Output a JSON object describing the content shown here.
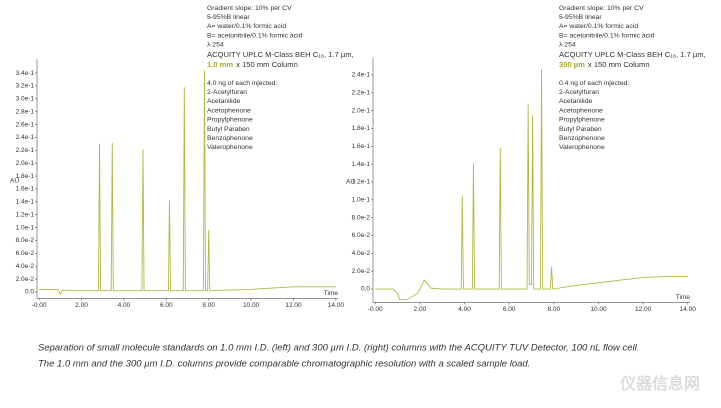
{
  "chart_data": [
    {
      "type": "line",
      "y_label": "AU",
      "x_label": "Time",
      "notes": [
        "Gradient slope: 10% per CV",
        "5-95%B linear",
        "A= water/0.1% formic acid",
        "B= acetonitrile/0.1% formic acid",
        "λ 254"
      ],
      "column": "ACQUITY UPLC M-Class BEH C₁₈, 1.7 µm,",
      "column_id": "1.0 mm",
      "column_length": "x 150 mm Column",
      "sample_note": "4.0 ng of each injected:",
      "compounds": [
        "2-Acetylfuran",
        "Acetanilide",
        "Acetophenone",
        "Propylphenone",
        "Butyl Paraben",
        "Benzophenone",
        "Valerophenone"
      ],
      "x": [
        0,
        0.5,
        0.9,
        1.0,
        1.1,
        1.5,
        2.8,
        2.85,
        2.9,
        3.4,
        3.45,
        3.5,
        4.85,
        4.9,
        4.95,
        6.1,
        6.15,
        6.2,
        6.8,
        6.85,
        6.9,
        7.75,
        7.8,
        7.85,
        7.95,
        8.0,
        8.05,
        9,
        10,
        11,
        12,
        13,
        14
      ],
      "series": [
        {
          "color": "#b5b842",
          "values": [
            0.004,
            0.004,
            0.004,
            -0.004,
            0.003,
            0.002,
            0.002,
            0.23,
            0.002,
            0.002,
            0.232,
            0.002,
            0.002,
            0.222,
            0.002,
            0.002,
            0.142,
            0.002,
            0.002,
            0.318,
            0.002,
            0.002,
            0.344,
            0.002,
            0.002,
            0.096,
            0.002,
            0.003,
            0.004,
            0.006,
            0.008,
            0.008,
            0.008
          ]
        }
      ],
      "xlim": [
        -0.1,
        14.1
      ],
      "xticks": [
        {
          "value": 0,
          "label": "-0.00"
        },
        {
          "value": 2,
          "label": "2.00"
        },
        {
          "value": 4,
          "label": "4.00"
        },
        {
          "value": 6,
          "label": "6.00"
        },
        {
          "value": 8,
          "label": "8.00"
        },
        {
          "value": 10,
          "label": "10.00"
        },
        {
          "value": 12,
          "label": "12.00"
        },
        {
          "value": 14,
          "label": "14.00"
        }
      ],
      "ylim": [
        -0.01,
        0.355
      ],
      "yticks": [
        {
          "value": 0,
          "label": "0.0"
        },
        {
          "value": 0.02,
          "label": "2.0e-2"
        },
        {
          "value": 0.04,
          "label": "4.0e-2"
        },
        {
          "value": 0.06,
          "label": "6.0e-2"
        },
        {
          "value": 0.08,
          "label": "8.0e-2"
        },
        {
          "value": 0.1,
          "label": "1.0e-1"
        },
        {
          "value": 0.12,
          "label": "1.2e-1"
        },
        {
          "value": 0.14,
          "label": "1.4e-1"
        },
        {
          "value": 0.16,
          "label": "1.6e-1"
        },
        {
          "value": 0.18,
          "label": "1.8e-1"
        },
        {
          "value": 0.2,
          "label": "2.0e-1"
        },
        {
          "value": 0.22,
          "label": "2.2e-1"
        },
        {
          "value": 0.24,
          "label": "2.4e-1"
        },
        {
          "value": 0.26,
          "label": "2.6e-1"
        },
        {
          "value": 0.28,
          "label": "2.8e-1"
        },
        {
          "value": 0.3,
          "label": "3.0e-1"
        },
        {
          "value": 0.32,
          "label": "3.2e-1"
        },
        {
          "value": 0.34,
          "label": "3.4e-1"
        }
      ]
    },
    {
      "type": "line",
      "y_label": "AU",
      "x_label": "Time",
      "notes": [
        "Gradient slope: 10% per CV",
        "5-95%B linear",
        "A= water/0.1% formic acid",
        "B= acetonitrile/0.1% formic acid",
        "λ 254"
      ],
      "column": "ACQUITY UPLC M-Class BEH C₁₈, 1.7 µm,",
      "column_id": "300 µm",
      "column_length": "x 150 mm Column",
      "sample_note": "0.4 ng of each injected:",
      "compounds": [
        "2-Acetylfuran",
        "Acetanilide",
        "Acetophenone",
        "Propylphenone",
        "Butyl Paraben",
        "Benzophenone",
        "Valerophenone"
      ],
      "x": [
        0,
        0.8,
        1.0,
        1.1,
        1.4,
        1.9,
        2.2,
        2.5,
        3.0,
        3.85,
        3.9,
        3.95,
        4.35,
        4.4,
        4.45,
        5.55,
        5.6,
        5.65,
        6.8,
        6.85,
        6.9,
        7.0,
        7.05,
        7.1,
        7.4,
        7.45,
        7.5,
        7.85,
        7.9,
        7.95,
        9,
        10,
        11,
        12,
        13,
        14
      ],
      "series": [
        {
          "color": "#b5b842",
          "values": [
            0,
            0,
            -0.005,
            -0.012,
            -0.012,
            -0.005,
            0.01,
            0.001,
            0,
            0,
            0.105,
            0,
            0,
            0.141,
            0,
            0,
            0.158,
            0,
            0,
            0.208,
            0.005,
            0.005,
            0.195,
            0,
            0,
            0.246,
            0,
            0,
            0.025,
            0,
            0.004,
            0.007,
            0.01,
            0.013,
            0.014,
            0.014
          ]
        }
      ],
      "xlim": [
        -0.1,
        14.1
      ],
      "xticks": [
        {
          "value": 0,
          "label": "-0.00"
        },
        {
          "value": 2,
          "label": "2.00"
        },
        {
          "value": 4,
          "label": "4.00"
        },
        {
          "value": 6,
          "label": "6.00"
        },
        {
          "value": 8,
          "label": "8.00"
        },
        {
          "value": 10,
          "label": "10.00"
        },
        {
          "value": 12,
          "label": "12.00"
        },
        {
          "value": 14,
          "label": "14.00"
        }
      ],
      "ylim": [
        -0.015,
        0.255
      ],
      "yticks": [
        {
          "value": 0,
          "label": "0.0"
        },
        {
          "value": 0.02,
          "label": "2.0e-2"
        },
        {
          "value": 0.04,
          "label": "4.0e-2"
        },
        {
          "value": 0.06,
          "label": "6.0e-2"
        },
        {
          "value": 0.08,
          "label": "8.0e-2"
        },
        {
          "value": 0.1,
          "label": "1.0e-1"
        },
        {
          "value": 0.12,
          "label": "1.2e-1"
        },
        {
          "value": 0.14,
          "label": "1.4e-1"
        },
        {
          "value": 0.16,
          "label": "1.6e-1"
        },
        {
          "value": 0.18,
          "label": "1.8e-1"
        },
        {
          "value": 0.2,
          "label": "2.0e-1"
        },
        {
          "value": 0.22,
          "label": "2.2e-1"
        },
        {
          "value": 0.24,
          "label": "2.4e-1"
        }
      ]
    }
  ],
  "caption": [
    "Separation of small molecule standards on 1.0 mm I.D. (left) and 300 µm I.D. (right) columns with the ACQUITY TUV Detector, 100 nL flow cell.",
    "The 1.0 mm and the 300 µm I.D. columns provide comparable chromatographic resolution with a scaled sample load."
  ],
  "watermark": "仪器信息网"
}
